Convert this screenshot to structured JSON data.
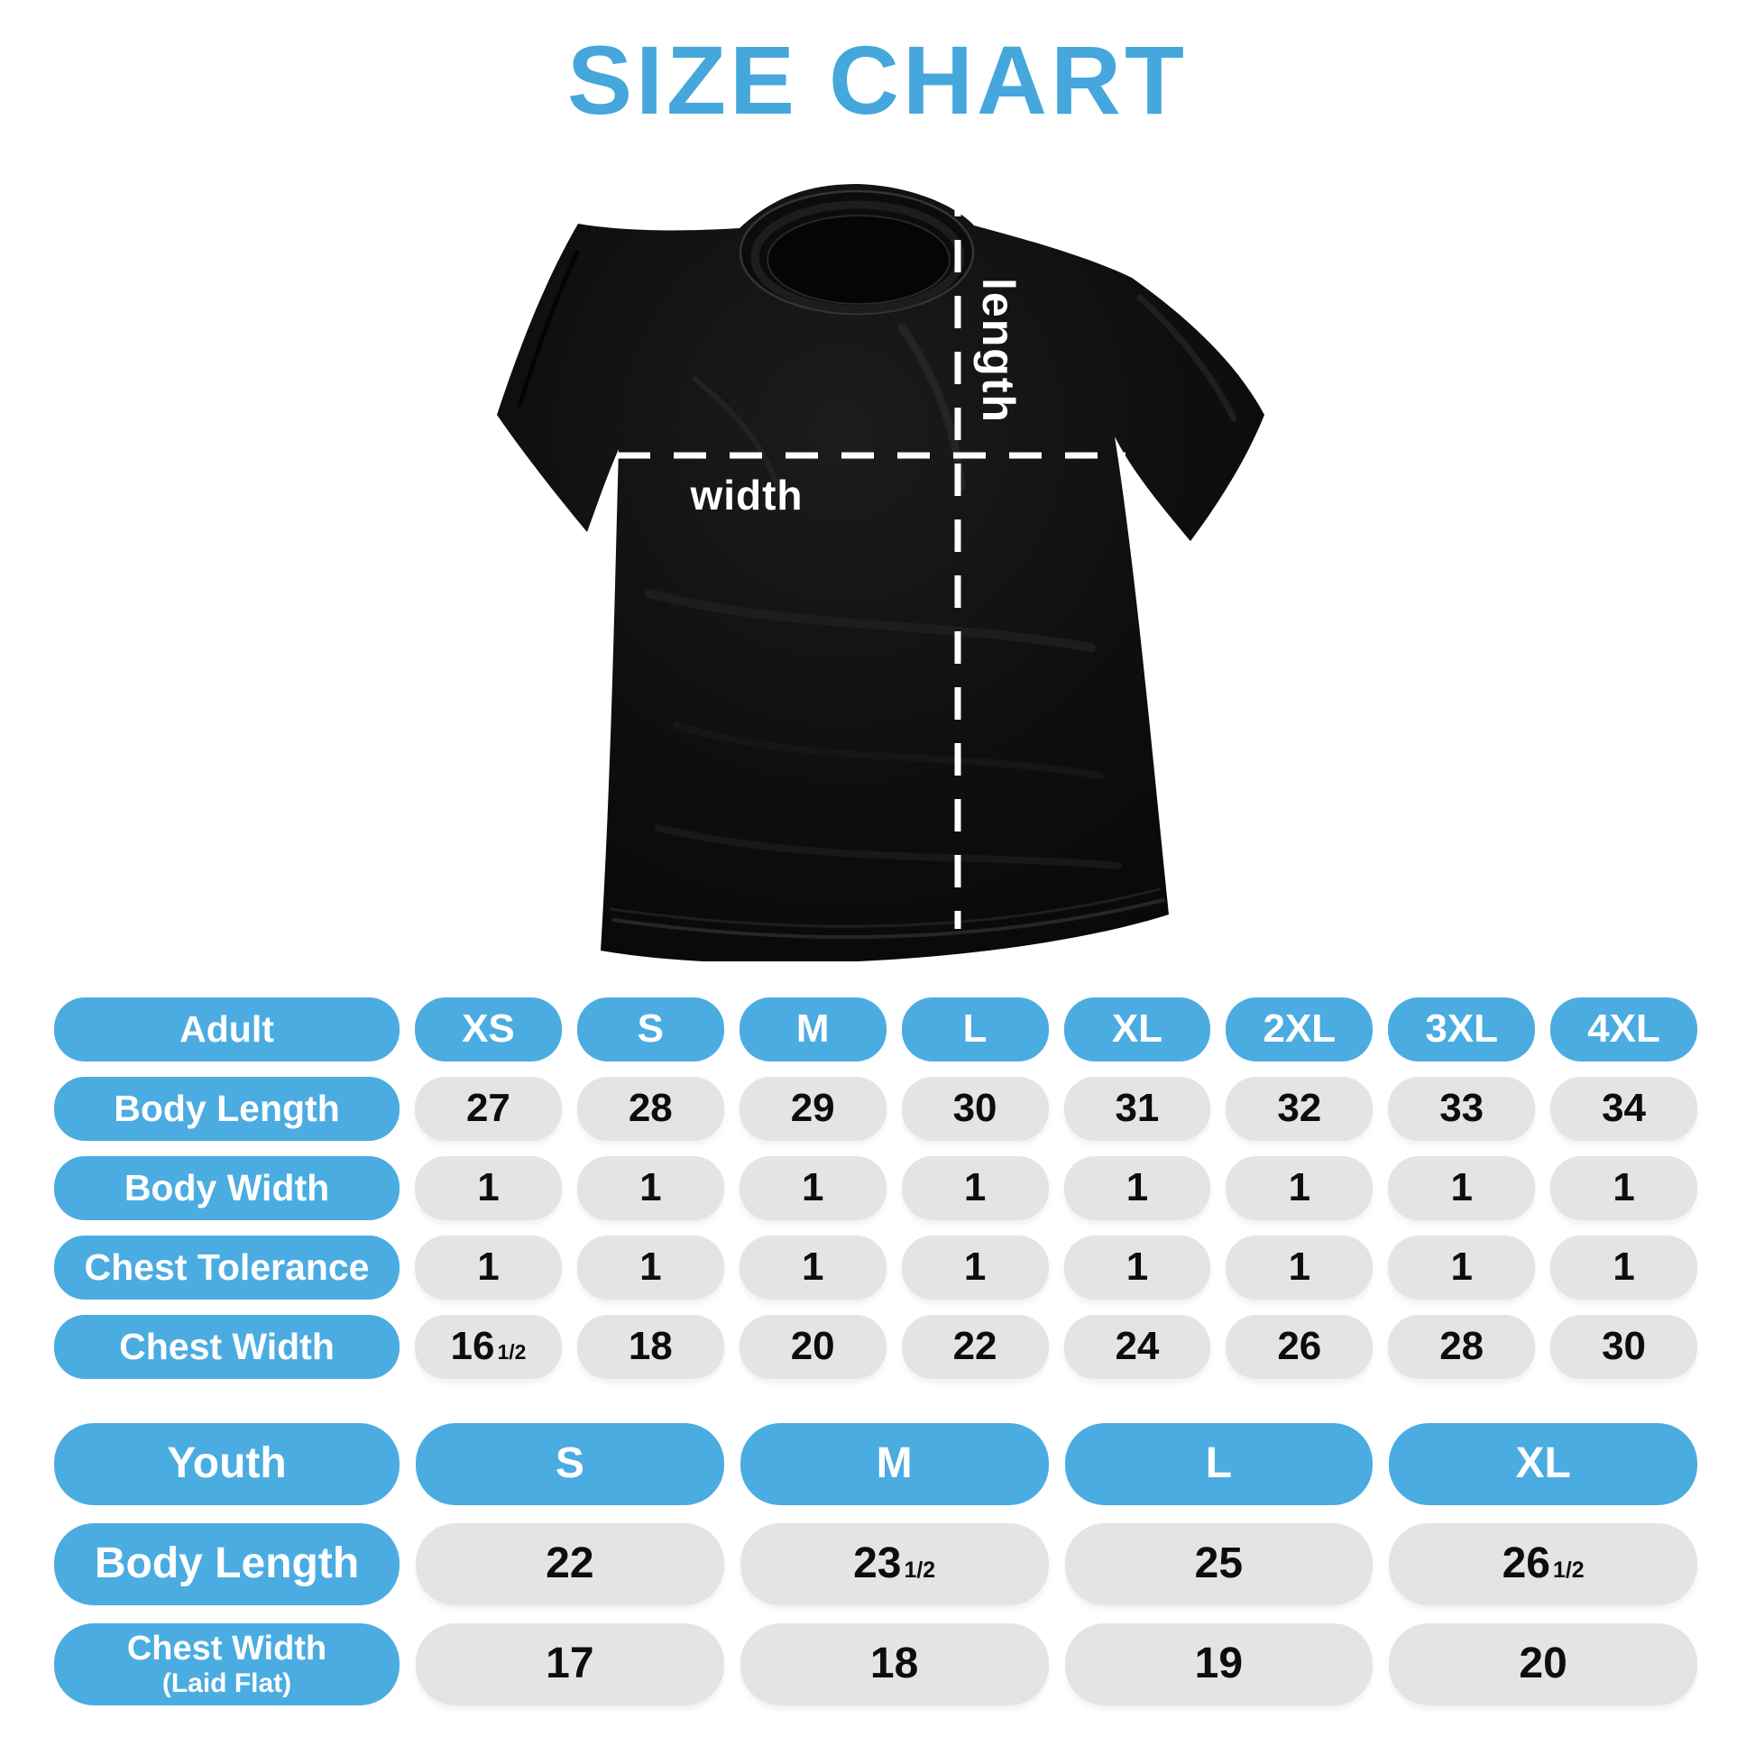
{
  "title": "SIZE CHART",
  "colors": {
    "title_blue": "#45A7DB",
    "pill_blue": "#4BACE1",
    "pill_gray": "#E4E4E6",
    "value_text": "#0d0d0d",
    "shirt_black": "#0d0d0d",
    "guide_white": "#ffffff"
  },
  "shirt": {
    "length_label": "length",
    "width_label": "width"
  },
  "adult_table": {
    "header": {
      "label": "Adult",
      "sizes": [
        "XS",
        "S",
        "M",
        "L",
        "XL",
        "2XL",
        "3XL",
        "4XL"
      ]
    },
    "rows": [
      {
        "label": "Body Length",
        "values": [
          "27",
          "28",
          "29",
          "30",
          "31",
          "32",
          "33",
          "34"
        ]
      },
      {
        "label": "Body Width",
        "values": [
          "1",
          "1",
          "1",
          "1",
          "1",
          "1",
          "1",
          "1"
        ]
      },
      {
        "label": "Chest Tolerance",
        "values": [
          "1",
          "1",
          "1",
          "1",
          "1",
          "1",
          "1",
          "1"
        ]
      },
      {
        "label": "Chest Width",
        "values": [
          {
            "v": "16",
            "f": "1/2"
          },
          "18",
          "20",
          "22",
          "24",
          "26",
          "28",
          "30"
        ]
      }
    ]
  },
  "youth_table": {
    "header": {
      "label": "Youth",
      "sizes": [
        "S",
        "M",
        "L",
        "XL"
      ]
    },
    "rows": [
      {
        "label": "Body Length",
        "values": [
          "22",
          {
            "v": "23",
            "f": "1/2"
          },
          "25",
          {
            "v": "26",
            "f": "1/2"
          }
        ]
      },
      {
        "label": "Chest Width",
        "label2": "(Laid Flat)",
        "values": [
          "17",
          "18",
          "19",
          "20"
        ]
      }
    ]
  },
  "chart_data": [
    {
      "type": "table",
      "title": "Adult sizes",
      "columns": [
        "Adult",
        "XS",
        "S",
        "M",
        "L",
        "XL",
        "2XL",
        "3XL",
        "4XL"
      ],
      "rows": [
        [
          "Body Length",
          27,
          28,
          29,
          30,
          31,
          32,
          33,
          34
        ],
        [
          "Body Width",
          1,
          1,
          1,
          1,
          1,
          1,
          1,
          1
        ],
        [
          "Chest Tolerance",
          1,
          1,
          1,
          1,
          1,
          1,
          1,
          1
        ],
        [
          "Chest Width",
          16.5,
          18,
          20,
          22,
          24,
          26,
          28,
          30
        ]
      ]
    },
    {
      "type": "table",
      "title": "Youth sizes",
      "columns": [
        "Youth",
        "S",
        "M",
        "L",
        "XL"
      ],
      "rows": [
        [
          "Body Length",
          22,
          23.5,
          25,
          26.5
        ],
        [
          "Chest Width (Laid Flat)",
          17,
          18,
          19,
          20
        ]
      ]
    }
  ]
}
